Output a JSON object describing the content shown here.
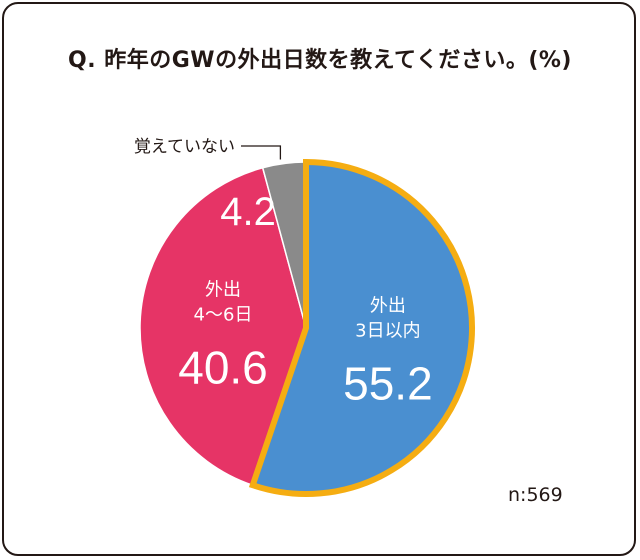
{
  "chart_data": {
    "type": "pie",
    "title": "Q. 昨年のGWの外出日数を教えてください。(%)",
    "sample_size": "n:569",
    "start_angle_deg": 0,
    "direction": "clockwise",
    "slices": [
      {
        "label": "外出\n3日以内",
        "value": 55.2,
        "value_label": "55.2",
        "color": "#4a8fd0",
        "highlight": true,
        "highlight_color": "#f5ad12"
      },
      {
        "label": "外出\n4〜6日",
        "value": 40.6,
        "value_label": "40.6",
        "color": "#e63466",
        "highlight": false
      },
      {
        "label": "覚えていない",
        "value": 4.2,
        "value_label": "4.2",
        "color": "#8a8a8a",
        "highlight": false,
        "label_outside": true
      }
    ]
  }
}
